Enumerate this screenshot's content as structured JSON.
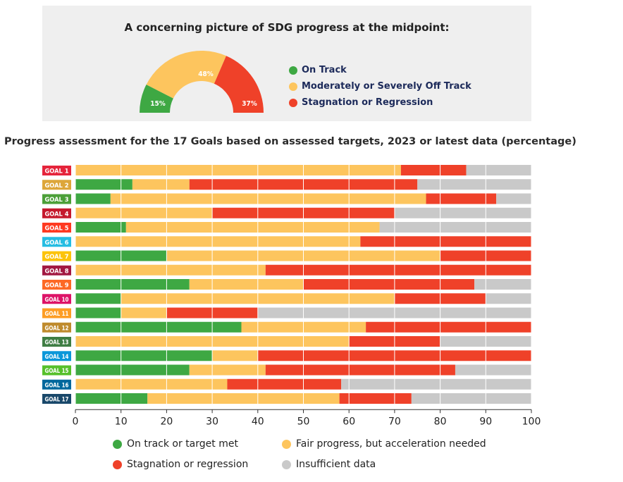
{
  "summary": {
    "title": "A concerning picture of SDG progress at the midpoint:",
    "legend": [
      {
        "label": "On Track",
        "color": "#3ea843"
      },
      {
        "label": "Moderately or Severely Off Track",
        "color": "#fdc55e"
      },
      {
        "label": "Stagnation or Regression",
        "color": "#ef4129"
      }
    ]
  },
  "main_title": "Progress assessment for the 17 Goals based on assessed targets, 2023 or latest data (percentage)",
  "bottom_legend": [
    {
      "label": "On track or target met",
      "color": "#3ea843"
    },
    {
      "label": "Fair progress, but acceleration needed",
      "color": "#fdc55e"
    },
    {
      "label": "Stagnation or regression",
      "color": "#ef4129"
    },
    {
      "label": "Insufficient data",
      "color": "#c9c9c9"
    }
  ],
  "chart_data": [
    {
      "type": "pie",
      "labels": [
        "On Track",
        "Moderately or Severely Off Track",
        "Stagnation or Regression"
      ],
      "values": [
        15,
        48,
        37
      ],
      "value_labels": [
        "15%",
        "48%",
        "37%"
      ],
      "colors": [
        "#3ea843",
        "#fdc55e",
        "#ef4129"
      ]
    },
    {
      "type": "bar",
      "orientation": "horizontal",
      "stacked": true,
      "categories": [
        "GOAL 1",
        "GOAL 2",
        "GOAL 3",
        "GOAL 4",
        "GOAL 5",
        "GOAL 6",
        "GOAL 7",
        "GOAL 8",
        "GOAL 9",
        "GOAL 10",
        "GOAL 11",
        "GOAL 12",
        "GOAL 13",
        "GOAL 14",
        "GOAL 15",
        "GOAL 16",
        "GOAL 17"
      ],
      "category_colors": [
        "#e5243b",
        "#dda63a",
        "#4c9f38",
        "#c5192d",
        "#ff3a21",
        "#26bde2",
        "#fcc30b",
        "#a21942",
        "#fd6925",
        "#dd1367",
        "#fd9d24",
        "#bf8b2e",
        "#3f7e44",
        "#0a97d9",
        "#56c02b",
        "#00689d",
        "#19486a"
      ],
      "series": [
        {
          "name": "On track or target met",
          "color": "#3ea843",
          "values": [
            0,
            12.5,
            7.7,
            0,
            11.1,
            0,
            20,
            0,
            25,
            10,
            10,
            36.4,
            0,
            30,
            25,
            0,
            15.8
          ]
        },
        {
          "name": "Fair progress, but acceleration needed",
          "color": "#fdc55e",
          "values": [
            71.4,
            12.5,
            69.2,
            30,
            55.6,
            62.5,
            60,
            41.7,
            25,
            60,
            10,
            27.3,
            60,
            10,
            16.7,
            33.3,
            42.1
          ]
        },
        {
          "name": "Stagnation or regression",
          "color": "#ef4129",
          "values": [
            14.3,
            50,
            15.4,
            40,
            0,
            37.5,
            20,
            58.3,
            37.5,
            20,
            20,
            36.3,
            20,
            60,
            41.6,
            25,
            15.8
          ]
        },
        {
          "name": "Insufficient data",
          "color": "#c9c9c9",
          "values": [
            14.3,
            25,
            7.7,
            30,
            33.3,
            0,
            0,
            0,
            12.5,
            10,
            60,
            0,
            20,
            0,
            16.7,
            41.7,
            26.3
          ]
        }
      ],
      "xlim": [
        0,
        100
      ],
      "xticks": [
        0,
        10,
        20,
        30,
        40,
        50,
        60,
        70,
        80,
        90,
        100
      ],
      "grid": true,
      "legend_position": "bottom"
    }
  ]
}
